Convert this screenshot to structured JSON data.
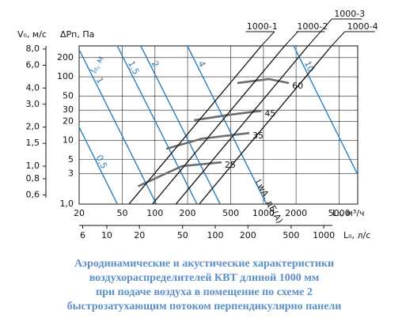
{
  "chart_data": {
    "type": "nomogram",
    "ylabel": "V₀, м/с",
    "y2label": "ΔPп, Па",
    "xlabel": "L₀, м³/ч",
    "x2label": "L₀, л/с",
    "xlim": [
      20,
      7400
    ],
    "xticks": [
      20,
      50,
      100,
      200,
      500,
      1000,
      2000,
      5000
    ],
    "x2lim": [
      5.56,
      2056
    ],
    "x2ticks": [
      6,
      10,
      20,
      50,
      100,
      200,
      500,
      1000
    ],
    "ylim": [
      0.51,
      8.45
    ],
    "yticks": [
      {
        "value": 8,
        "label": "8,0"
      },
      {
        "value": 6,
        "label": "6,0"
      },
      {
        "value": 4,
        "label": "4,0"
      },
      {
        "value": 3,
        "label": "3,0"
      },
      {
        "value": 2,
        "label": "2,0"
      },
      {
        "value": 1.5,
        "label": "1,5"
      },
      {
        "value": 1,
        "label": "1,0"
      },
      {
        "value": 0.8,
        "label": "0,8"
      },
      {
        "value": 0.6,
        "label": "0,6"
      }
    ],
    "y2lim": [
      1,
      306
    ],
    "y2ticks": [
      200,
      100,
      50,
      30,
      20,
      10,
      5,
      3,
      {
        "value": 1,
        "label": "1,0"
      }
    ],
    "grid": true,
    "series": [
      {
        "name": "1000-1",
        "color": "#111111",
        "x": [
          57.6,
          955
        ],
        "values": [
          0.51,
          8.45
        ]
      },
      {
        "name": "1000-2",
        "color": "#111111",
        "x": [
          94.7,
          1570
        ],
        "values": [
          0.51,
          8.45
        ]
      },
      {
        "name": "1000-3",
        "color": "#111111",
        "x": [
          156,
          2580
        ],
        "values": [
          0.51,
          8.45
        ]
      },
      {
        "name": "1000-4",
        "color": "#111111",
        "x": [
          256,
          4250
        ],
        "values": [
          0.51,
          8.45
        ]
      }
    ],
    "noise_label": "LwA, дБ(A)",
    "noise_color": "#6d6d6d",
    "noise_curves": [
      {
        "name": "25",
        "x": [
          70,
          177,
          411
        ],
        "values": [
          0.7,
          1.0,
          1.07
        ]
      },
      {
        "name": "35",
        "x": [
          127,
          272,
          741
        ],
        "values": [
          1.36,
          1.63,
          1.8
        ]
      },
      {
        "name": "45",
        "x": [
          230,
          490,
          960
        ],
        "values": [
          2.26,
          2.49,
          2.67
        ]
      },
      {
        "name": "60",
        "x": [
          575,
          1120,
          1720
        ],
        "values": [
          4.37,
          4.69,
          4.37
        ]
      }
    ],
    "throw_label": "l₀, м",
    "throw_color": "#2a7fc0",
    "throw_lines": [
      {
        "name": "0,5",
        "x": [
          8.5,
          45
        ],
        "values": [
          8.45,
          0.51
        ]
      },
      {
        "name": "1",
        "x": [
          19.2,
          103
        ],
        "values": [
          8.45,
          0.51
        ]
      },
      {
        "name": "1,5",
        "x": [
          45,
          244
        ],
        "values": [
          8.45,
          0.51
        ]
      },
      {
        "name": "2",
        "x": [
          74,
          399
        ],
        "values": [
          8.45,
          0.51
        ]
      },
      {
        "name": "4",
        "x": [
          199,
          1066
        ],
        "values": [
          8.45,
          0.51
        ]
      },
      {
        "name": "10",
        "x": [
          1900,
          10100
        ],
        "values": [
          8.45,
          0.51
        ]
      }
    ],
    "caption": [
      "Аэродинамические и акустические характеристики",
      "воздухораспределителей КВТ длиной 1000 мм",
      "при подаче воздуха в помещение по схеме 2",
      "быстрозатухающим потоком перпендикулярно панели"
    ]
  }
}
